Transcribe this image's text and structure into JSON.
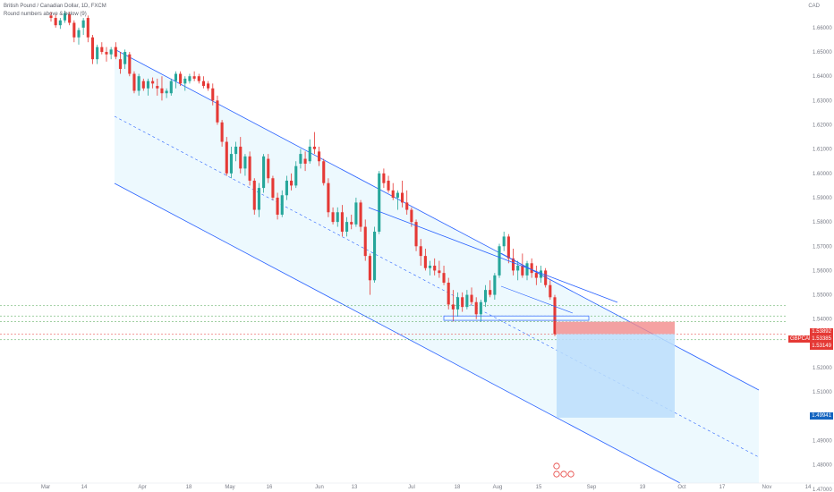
{
  "legend": {
    "title": "British Pound / Canadian Dollar, 1D, FXCM",
    "subtitle": "Round numbers above & below (9)"
  },
  "currency": "CAD",
  "ticker": "GBPCAD",
  "price_tags": {
    "upper": "1.53892",
    "current": "1.53385",
    "lower": "1.53149",
    "target": "1.49941"
  },
  "colors": {
    "up": "#26a69a",
    "down": "#e53935",
    "channel_line": "#2962ff",
    "channel_fill": "#e1f5fe",
    "stop_zone": "#f28b8b",
    "target_zone": "#bbdefb",
    "target_tag": "#1565c0"
  },
  "chart_data": {
    "type": "candlestick",
    "y_axis": {
      "label": "CAD",
      "ticks": [
        "1.66000",
        "1.65000",
        "1.64000",
        "1.63000",
        "1.62000",
        "1.61000",
        "1.60000",
        "1.59000",
        "1.58000",
        "1.57000",
        "1.56000",
        "1.55000",
        "1.54000",
        "1.53000",
        "1.52000",
        "1.51000",
        "1.50000",
        "1.49000",
        "1.48000",
        "1.47000"
      ],
      "range": [
        1.4725,
        1.6677
      ]
    },
    "x_axis": {
      "ticks": [
        "Mar",
        "14",
        "Apr",
        "18",
        "May",
        "16",
        "Jun",
        "13",
        "Jul",
        "18",
        "Aug",
        "15",
        "Sep",
        "19",
        "Oct",
        "17",
        "Nov",
        "14"
      ]
    },
    "candles": [
      {
        "o": 1.665,
        "h": 1.6665,
        "l": 1.6625,
        "c": 1.664
      },
      {
        "o": 1.664,
        "h": 1.6655,
        "l": 1.66,
        "c": 1.661
      },
      {
        "o": 1.661,
        "h": 1.664,
        "l": 1.6595,
        "c": 1.663
      },
      {
        "o": 1.663,
        "h": 1.667,
        "l": 1.662,
        "c": 1.666
      },
      {
        "o": 1.6655,
        "h": 1.6665,
        "l": 1.661,
        "c": 1.662
      },
      {
        "o": 1.662,
        "h": 1.663,
        "l": 1.654,
        "c": 1.656
      },
      {
        "o": 1.656,
        "h": 1.66,
        "l": 1.653,
        "c": 1.659
      },
      {
        "o": 1.66,
        "h": 1.664,
        "l": 1.657,
        "c": 1.663
      },
      {
        "o": 1.664,
        "h": 1.665,
        "l": 1.654,
        "c": 1.656
      },
      {
        "o": 1.656,
        "h": 1.657,
        "l": 1.645,
        "c": 1.647
      },
      {
        "o": 1.647,
        "h": 1.653,
        "l": 1.645,
        "c": 1.652
      },
      {
        "o": 1.652,
        "h": 1.654,
        "l": 1.649,
        "c": 1.65
      },
      {
        "o": 1.65,
        "h": 1.652,
        "l": 1.646,
        "c": 1.649
      },
      {
        "o": 1.649,
        "h": 1.652,
        "l": 1.647,
        "c": 1.651
      },
      {
        "o": 1.652,
        "h": 1.654,
        "l": 1.647,
        "c": 1.648
      },
      {
        "o": 1.647,
        "h": 1.65,
        "l": 1.641,
        "c": 1.643
      },
      {
        "o": 1.645,
        "h": 1.651,
        "l": 1.643,
        "c": 1.65
      },
      {
        "o": 1.649,
        "h": 1.65,
        "l": 1.64,
        "c": 1.641
      },
      {
        "o": 1.641,
        "h": 1.642,
        "l": 1.633,
        "c": 1.634
      },
      {
        "o": 1.634,
        "h": 1.641,
        "l": 1.632,
        "c": 1.64
      },
      {
        "o": 1.638,
        "h": 1.639,
        "l": 1.634,
        "c": 1.635
      },
      {
        "o": 1.635,
        "h": 1.639,
        "l": 1.632,
        "c": 1.638
      },
      {
        "o": 1.638,
        "h": 1.6395,
        "l": 1.635,
        "c": 1.637
      },
      {
        "o": 1.636,
        "h": 1.639,
        "l": 1.632,
        "c": 1.635
      },
      {
        "o": 1.635,
        "h": 1.64,
        "l": 1.63,
        "c": 1.633
      },
      {
        "o": 1.633,
        "h": 1.635,
        "l": 1.631,
        "c": 1.634
      },
      {
        "o": 1.633,
        "h": 1.639,
        "l": 1.632,
        "c": 1.638
      },
      {
        "o": 1.638,
        "h": 1.642,
        "l": 1.635,
        "c": 1.641
      },
      {
        "o": 1.641,
        "h": 1.642,
        "l": 1.636,
        "c": 1.637
      },
      {
        "o": 1.637,
        "h": 1.64,
        "l": 1.634,
        "c": 1.639
      },
      {
        "o": 1.638,
        "h": 1.641,
        "l": 1.637,
        "c": 1.64
      },
      {
        "o": 1.64,
        "h": 1.642,
        "l": 1.638,
        "c": 1.639
      },
      {
        "o": 1.64,
        "h": 1.641,
        "l": 1.637,
        "c": 1.638
      },
      {
        "o": 1.638,
        "h": 1.64,
        "l": 1.635,
        "c": 1.636
      },
      {
        "o": 1.637,
        "h": 1.638,
        "l": 1.634,
        "c": 1.635
      },
      {
        "o": 1.635,
        "h": 1.637,
        "l": 1.628,
        "c": 1.63
      },
      {
        "o": 1.63,
        "h": 1.632,
        "l": 1.62,
        "c": 1.621
      },
      {
        "o": 1.621,
        "h": 1.622,
        "l": 1.611,
        "c": 1.613
      },
      {
        "o": 1.613,
        "h": 1.615,
        "l": 1.599,
        "c": 1.6
      },
      {
        "o": 1.6,
        "h": 1.611,
        "l": 1.598,
        "c": 1.608
      },
      {
        "o": 1.608,
        "h": 1.613,
        "l": 1.605,
        "c": 1.611
      },
      {
        "o": 1.611,
        "h": 1.615,
        "l": 1.6,
        "c": 1.602
      },
      {
        "o": 1.602,
        "h": 1.608,
        "l": 1.599,
        "c": 1.607
      },
      {
        "o": 1.607,
        "h": 1.609,
        "l": 1.595,
        "c": 1.597
      },
      {
        "o": 1.597,
        "h": 1.598,
        "l": 1.583,
        "c": 1.585
      },
      {
        "o": 1.585,
        "h": 1.596,
        "l": 1.582,
        "c": 1.594
      },
      {
        "o": 1.594,
        "h": 1.608,
        "l": 1.592,
        "c": 1.607
      },
      {
        "o": 1.606,
        "h": 1.608,
        "l": 1.596,
        "c": 1.598
      },
      {
        "o": 1.598,
        "h": 1.599,
        "l": 1.589,
        "c": 1.59
      },
      {
        "o": 1.59,
        "h": 1.592,
        "l": 1.581,
        "c": 1.583
      },
      {
        "o": 1.583,
        "h": 1.593,
        "l": 1.582,
        "c": 1.591
      },
      {
        "o": 1.591,
        "h": 1.599,
        "l": 1.589,
        "c": 1.597
      },
      {
        "o": 1.597,
        "h": 1.6,
        "l": 1.593,
        "c": 1.595
      },
      {
        "o": 1.595,
        "h": 1.605,
        "l": 1.594,
        "c": 1.603
      },
      {
        "o": 1.604,
        "h": 1.61,
        "l": 1.602,
        "c": 1.608
      },
      {
        "o": 1.606,
        "h": 1.609,
        "l": 1.601,
        "c": 1.604
      },
      {
        "o": 1.605,
        "h": 1.614,
        "l": 1.604,
        "c": 1.611
      },
      {
        "o": 1.611,
        "h": 1.617,
        "l": 1.608,
        "c": 1.61
      },
      {
        "o": 1.609,
        "h": 1.611,
        "l": 1.603,
        "c": 1.605
      },
      {
        "o": 1.605,
        "h": 1.606,
        "l": 1.595,
        "c": 1.596
      },
      {
        "o": 1.596,
        "h": 1.598,
        "l": 1.582,
        "c": 1.584
      },
      {
        "o": 1.584,
        "h": 1.586,
        "l": 1.579,
        "c": 1.58
      },
      {
        "o": 1.58,
        "h": 1.586,
        "l": 1.578,
        "c": 1.584
      },
      {
        "o": 1.584,
        "h": 1.587,
        "l": 1.574,
        "c": 1.576
      },
      {
        "o": 1.576,
        "h": 1.582,
        "l": 1.574,
        "c": 1.58
      },
      {
        "o": 1.58,
        "h": 1.583,
        "l": 1.577,
        "c": 1.579
      },
      {
        "o": 1.579,
        "h": 1.59,
        "l": 1.578,
        "c": 1.588
      },
      {
        "o": 1.588,
        "h": 1.589,
        "l": 1.576,
        "c": 1.578
      },
      {
        "o": 1.578,
        "h": 1.581,
        "l": 1.564,
        "c": 1.566
      },
      {
        "o": 1.566,
        "h": 1.567,
        "l": 1.55,
        "c": 1.556
      },
      {
        "o": 1.556,
        "h": 1.578,
        "l": 1.555,
        "c": 1.576
      },
      {
        "o": 1.576,
        "h": 1.601,
        "l": 1.575,
        "c": 1.6
      },
      {
        "o": 1.6,
        "h": 1.602,
        "l": 1.594,
        "c": 1.596
      },
      {
        "o": 1.597,
        "h": 1.599,
        "l": 1.592,
        "c": 1.593
      },
      {
        "o": 1.593,
        "h": 1.596,
        "l": 1.589,
        "c": 1.59
      },
      {
        "o": 1.59,
        "h": 1.593,
        "l": 1.585,
        "c": 1.592
      },
      {
        "o": 1.592,
        "h": 1.597,
        "l": 1.586,
        "c": 1.588
      },
      {
        "o": 1.588,
        "h": 1.593,
        "l": 1.583,
        "c": 1.585
      },
      {
        "o": 1.585,
        "h": 1.586,
        "l": 1.578,
        "c": 1.58
      },
      {
        "o": 1.58,
        "h": 1.581,
        "l": 1.568,
        "c": 1.57
      },
      {
        "o": 1.57,
        "h": 1.573,
        "l": 1.562,
        "c": 1.566
      },
      {
        "o": 1.566,
        "h": 1.569,
        "l": 1.56,
        "c": 1.561
      },
      {
        "o": 1.561,
        "h": 1.564,
        "l": 1.558,
        "c": 1.562
      },
      {
        "o": 1.562,
        "h": 1.565,
        "l": 1.558,
        "c": 1.56
      },
      {
        "o": 1.56,
        "h": 1.564,
        "l": 1.557,
        "c": 1.559
      },
      {
        "o": 1.559,
        "h": 1.562,
        "l": 1.554,
        "c": 1.555
      },
      {
        "o": 1.555,
        "h": 1.557,
        "l": 1.544,
        "c": 1.546
      },
      {
        "o": 1.546,
        "h": 1.552,
        "l": 1.539,
        "c": 1.544
      },
      {
        "o": 1.544,
        "h": 1.551,
        "l": 1.541,
        "c": 1.549
      },
      {
        "o": 1.549,
        "h": 1.551,
        "l": 1.543,
        "c": 1.545
      },
      {
        "o": 1.545,
        "h": 1.552,
        "l": 1.544,
        "c": 1.55
      },
      {
        "o": 1.55,
        "h": 1.553,
        "l": 1.546,
        "c": 1.547
      },
      {
        "o": 1.547,
        "h": 1.549,
        "l": 1.54,
        "c": 1.542
      },
      {
        "o": 1.542,
        "h": 1.548,
        "l": 1.539,
        "c": 1.547
      },
      {
        "o": 1.547,
        "h": 1.554,
        "l": 1.545,
        "c": 1.552
      },
      {
        "o": 1.552,
        "h": 1.556,
        "l": 1.549,
        "c": 1.55
      },
      {
        "o": 1.55,
        "h": 1.559,
        "l": 1.548,
        "c": 1.558
      },
      {
        "o": 1.558,
        "h": 1.571,
        "l": 1.557,
        "c": 1.57
      },
      {
        "o": 1.57,
        "h": 1.576,
        "l": 1.568,
        "c": 1.574
      },
      {
        "o": 1.574,
        "h": 1.575,
        "l": 1.563,
        "c": 1.565
      },
      {
        "o": 1.565,
        "h": 1.569,
        "l": 1.558,
        "c": 1.56
      },
      {
        "o": 1.56,
        "h": 1.564,
        "l": 1.556,
        "c": 1.562
      },
      {
        "o": 1.562,
        "h": 1.567,
        "l": 1.557,
        "c": 1.558
      },
      {
        "o": 1.558,
        "h": 1.564,
        "l": 1.556,
        "c": 1.563
      },
      {
        "o": 1.563,
        "h": 1.565,
        "l": 1.557,
        "c": 1.559
      },
      {
        "o": 1.559,
        "h": 1.562,
        "l": 1.554,
        "c": 1.557
      },
      {
        "o": 1.557,
        "h": 1.562,
        "l": 1.555,
        "c": 1.56
      },
      {
        "o": 1.56,
        "h": 1.561,
        "l": 1.553,
        "c": 1.554
      },
      {
        "o": 1.554,
        "h": 1.556,
        "l": 1.548,
        "c": 1.549
      },
      {
        "o": 1.549,
        "h": 1.55,
        "l": 1.533,
        "c": 1.5338
      }
    ],
    "drawings": {
      "channel": "descending parallel channel with dashed median",
      "trendline": "resistance line from early July high through August highs",
      "support": "horizontal support box around 1.5400",
      "short_position": {
        "entry": 1.53385,
        "stop": 1.53892,
        "target": 1.49941
      }
    }
  }
}
